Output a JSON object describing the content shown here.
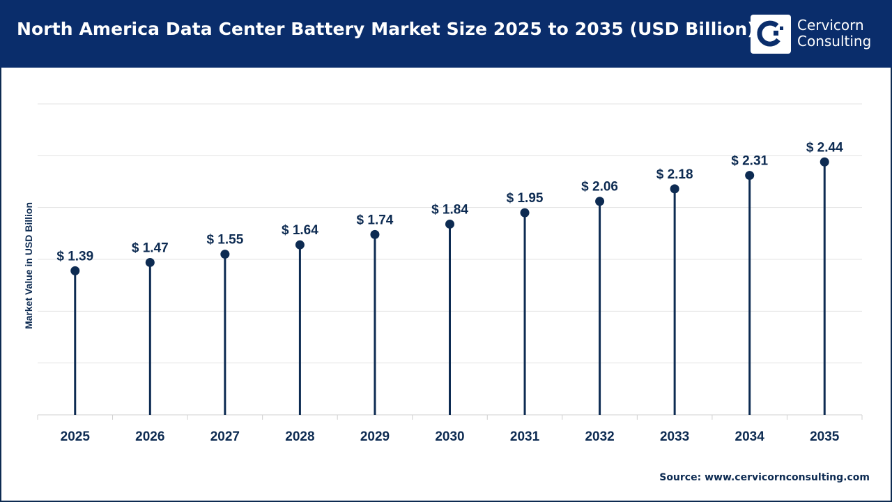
{
  "header": {
    "title": "North America Data Center Battery Market Size 2025 to 2035 (USD Billion)",
    "logo_line1": "Cervicorn",
    "logo_line2": "Consulting"
  },
  "source": "Source: www.cervicornconsulting.com",
  "colors": {
    "header": "#0a2d6b",
    "series": "#0d2b52",
    "grid": "#e3e3e3"
  },
  "chart_data": {
    "type": "lollipop",
    "title": "North America Data Center Battery Market Size 2025 to 2035 (USD Billion)",
    "xlabel": "",
    "ylabel": "Market Value in USD Billion",
    "categories": [
      "2025",
      "2026",
      "2027",
      "2028",
      "2029",
      "2030",
      "2031",
      "2032",
      "2033",
      "2034",
      "2035"
    ],
    "values": [
      1.39,
      1.47,
      1.55,
      1.64,
      1.74,
      1.84,
      1.95,
      2.06,
      2.18,
      2.31,
      2.44
    ],
    "labels": [
      "$ 1.39",
      "$ 1.47",
      "$ 1.55",
      "$ 1.64",
      "$ 1.74",
      "$ 1.84",
      "$ 1.95",
      "$ 2.06",
      "$ 2.18",
      "$ 2.31",
      "$ 2.44"
    ],
    "ylim": [
      0,
      3
    ],
    "grid": true,
    "y_tick_labels_shown": false
  }
}
